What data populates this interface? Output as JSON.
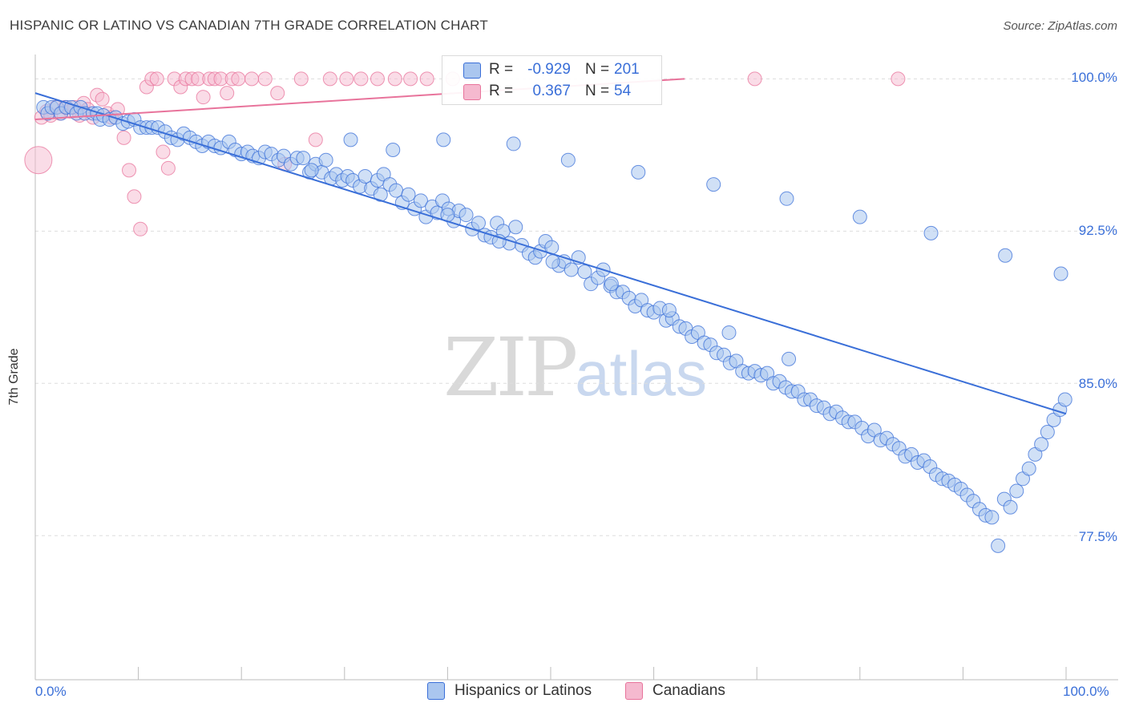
{
  "title": "HISPANIC OR LATINO VS CANADIAN 7TH GRADE CORRELATION CHART",
  "source": "Source: ZipAtlas.com",
  "watermark": {
    "zip": "ZIP",
    "atlas": "atlas"
  },
  "colors": {
    "blue": "#3a6fd8",
    "blue_fill": "#aac6ef",
    "pink": "#e8739b",
    "pink_fill": "#f5b9cf",
    "grid": "#dddddd"
  },
  "legend": {
    "rows": [
      {
        "r_label": "R =",
        "r_value": "-0.929",
        "n_label": "N =",
        "n_value": "201"
      },
      {
        "r_label": "R =",
        "r_value": "0.367",
        "n_label": "N =",
        "n_value": "54"
      }
    ]
  },
  "bottom_legend": [
    "Hispanics or Latinos",
    "Canadians"
  ],
  "chart_data": {
    "type": "scatter",
    "title": "HISPANIC OR LATINO VS CANADIAN 7TH GRADE CORRELATION CHART",
    "xlabel": "",
    "ylabel": "7th Grade",
    "x_tick_labels": [
      "0.0%",
      "100.0%"
    ],
    "y_tick_labels": [
      "100.0%",
      "92.5%",
      "85.0%",
      "77.5%"
    ],
    "y_tick_values": [
      100.0,
      92.5,
      85.0,
      77.5
    ],
    "xlim": [
      0,
      100
    ],
    "ylim": [
      70.4,
      101.2
    ],
    "grid": true,
    "legend_position": "top-center",
    "series": [
      {
        "name": "Hispanics or Latinos",
        "color": "#3a6fd8",
        "R": -0.929,
        "N": 201,
        "trend": {
          "x": [
            0,
            100
          ],
          "y": [
            99.3,
            83.5
          ]
        },
        "points": [
          [
            0.8,
            98.6
          ],
          [
            1.2,
            98.3
          ],
          [
            1.6,
            98.6
          ],
          [
            2.1,
            98.6
          ],
          [
            2.5,
            98.3
          ],
          [
            3.0,
            98.6
          ],
          [
            3.5,
            98.6
          ],
          [
            4.0,
            98.3
          ],
          [
            4.4,
            98.6
          ],
          [
            4.8,
            98.3
          ],
          [
            5.6,
            98.3
          ],
          [
            6.0,
            98.3
          ],
          [
            6.3,
            98.0
          ],
          [
            6.6,
            98.2
          ],
          [
            7.2,
            98.0
          ],
          [
            7.8,
            98.1
          ],
          [
            8.5,
            97.8
          ],
          [
            9.0,
            97.9
          ],
          [
            9.6,
            98.0
          ],
          [
            10.2,
            97.6
          ],
          [
            10.8,
            97.6
          ],
          [
            11.3,
            97.6
          ],
          [
            11.9,
            97.6
          ],
          [
            12.6,
            97.4
          ],
          [
            13.2,
            97.1
          ],
          [
            13.8,
            97.0
          ],
          [
            14.4,
            97.3
          ],
          [
            15.0,
            97.1
          ],
          [
            15.6,
            96.9
          ],
          [
            16.2,
            96.7
          ],
          [
            16.8,
            96.9
          ],
          [
            17.4,
            96.7
          ],
          [
            18.0,
            96.6
          ],
          [
            18.8,
            96.9
          ],
          [
            19.4,
            96.5
          ],
          [
            20.0,
            96.3
          ],
          [
            20.6,
            96.4
          ],
          [
            21.1,
            96.2
          ],
          [
            21.7,
            96.1
          ],
          [
            22.3,
            96.4
          ],
          [
            22.9,
            96.3
          ],
          [
            23.6,
            96.0
          ],
          [
            24.1,
            96.2
          ],
          [
            24.8,
            95.8
          ],
          [
            25.4,
            96.1
          ],
          [
            26.0,
            96.1
          ],
          [
            26.6,
            95.4
          ],
          [
            27.2,
            95.8
          ],
          [
            27.8,
            95.4
          ],
          [
            28.2,
            96.0
          ],
          [
            28.7,
            95.1
          ],
          [
            29.2,
            95.3
          ],
          [
            29.8,
            95.0
          ],
          [
            30.3,
            95.2
          ],
          [
            30.8,
            95.0
          ],
          [
            31.5,
            94.7
          ],
          [
            32.0,
            95.2
          ],
          [
            32.6,
            94.6
          ],
          [
            33.2,
            95.0
          ],
          [
            33.8,
            95.3
          ],
          [
            34.4,
            94.8
          ],
          [
            35.0,
            94.5
          ],
          [
            35.6,
            93.9
          ],
          [
            36.2,
            94.3
          ],
          [
            36.8,
            93.6
          ],
          [
            37.4,
            94.0
          ],
          [
            37.9,
            93.2
          ],
          [
            38.5,
            93.7
          ],
          [
            39.0,
            93.4
          ],
          [
            39.5,
            94.0
          ],
          [
            40.1,
            93.6
          ],
          [
            40.6,
            93.0
          ],
          [
            41.1,
            93.5
          ],
          [
            41.8,
            93.3
          ],
          [
            42.4,
            92.6
          ],
          [
            43.0,
            92.9
          ],
          [
            43.6,
            92.3
          ],
          [
            44.2,
            92.2
          ],
          [
            44.8,
            92.9
          ],
          [
            45.4,
            92.5
          ],
          [
            46.0,
            91.9
          ],
          [
            46.6,
            92.7
          ],
          [
            47.2,
            91.8
          ],
          [
            47.9,
            91.4
          ],
          [
            48.5,
            91.2
          ],
          [
            49.0,
            91.5
          ],
          [
            49.5,
            92.0
          ],
          [
            50.1,
            91.7
          ],
          [
            50.8,
            90.8
          ],
          [
            51.3,
            91.0
          ],
          [
            52.0,
            90.6
          ],
          [
            52.7,
            91.2
          ],
          [
            53.3,
            90.5
          ],
          [
            53.9,
            89.9
          ],
          [
            54.6,
            90.2
          ],
          [
            55.1,
            90.6
          ],
          [
            55.8,
            89.8
          ],
          [
            56.4,
            89.5
          ],
          [
            57.0,
            89.5
          ],
          [
            57.6,
            89.2
          ],
          [
            58.2,
            88.8
          ],
          [
            58.8,
            89.1
          ],
          [
            59.4,
            88.6
          ],
          [
            60.0,
            88.5
          ],
          [
            60.6,
            88.7
          ],
          [
            61.2,
            88.1
          ],
          [
            61.8,
            88.2
          ],
          [
            62.5,
            87.8
          ],
          [
            63.1,
            87.7
          ],
          [
            63.7,
            87.3
          ],
          [
            64.3,
            87.5
          ],
          [
            64.9,
            87.0
          ],
          [
            65.5,
            86.9
          ],
          [
            66.1,
            86.5
          ],
          [
            66.8,
            86.4
          ],
          [
            67.4,
            86.0
          ],
          [
            68.0,
            86.1
          ],
          [
            68.6,
            85.6
          ],
          [
            69.2,
            85.5
          ],
          [
            69.8,
            85.6
          ],
          [
            70.4,
            85.4
          ],
          [
            71.0,
            85.5
          ],
          [
            71.6,
            85.0
          ],
          [
            72.2,
            85.1
          ],
          [
            72.8,
            84.8
          ],
          [
            73.4,
            84.6
          ],
          [
            74.0,
            84.6
          ],
          [
            74.6,
            84.2
          ],
          [
            75.2,
            84.2
          ],
          [
            75.8,
            83.9
          ],
          [
            76.5,
            83.8
          ],
          [
            77.1,
            83.5
          ],
          [
            77.7,
            83.6
          ],
          [
            78.3,
            83.3
          ],
          [
            78.9,
            83.1
          ],
          [
            79.5,
            83.1
          ],
          [
            80.2,
            82.8
          ],
          [
            80.8,
            82.4
          ],
          [
            81.4,
            82.7
          ],
          [
            82.0,
            82.2
          ],
          [
            82.6,
            82.3
          ],
          [
            83.2,
            82.0
          ],
          [
            83.8,
            81.8
          ],
          [
            84.4,
            81.4
          ],
          [
            85.0,
            81.5
          ],
          [
            85.6,
            81.1
          ],
          [
            86.2,
            81.2
          ],
          [
            86.8,
            80.9
          ],
          [
            87.4,
            80.5
          ],
          [
            88.0,
            80.3
          ],
          [
            88.6,
            80.2
          ],
          [
            89.2,
            80.0
          ],
          [
            89.8,
            79.8
          ],
          [
            90.4,
            79.5
          ],
          [
            91.0,
            79.2
          ],
          [
            91.6,
            78.8
          ],
          [
            92.2,
            78.5
          ],
          [
            92.8,
            78.4
          ],
          [
            93.4,
            77.0
          ],
          [
            94.0,
            79.3
          ],
          [
            94.6,
            78.9
          ],
          [
            95.2,
            79.7
          ],
          [
            95.8,
            80.3
          ],
          [
            96.4,
            80.8
          ],
          [
            97.0,
            81.5
          ],
          [
            97.6,
            82.0
          ],
          [
            98.2,
            82.6
          ],
          [
            98.8,
            83.2
          ],
          [
            99.4,
            83.7
          ],
          [
            99.9,
            84.2
          ],
          [
            30.6,
            97.0
          ],
          [
            34.7,
            96.5
          ],
          [
            39.6,
            97.0
          ],
          [
            46.4,
            96.8
          ],
          [
            51.7,
            96.0
          ],
          [
            58.5,
            95.4
          ],
          [
            65.8,
            94.8
          ],
          [
            72.9,
            94.1
          ],
          [
            80.0,
            93.2
          ],
          [
            86.9,
            92.4
          ],
          [
            94.1,
            91.3
          ],
          [
            99.5,
            90.4
          ],
          [
            26.8,
            95.5
          ],
          [
            33.5,
            94.3
          ],
          [
            40.0,
            93.3
          ],
          [
            45.0,
            92.0
          ],
          [
            50.2,
            91.0
          ],
          [
            55.9,
            89.9
          ],
          [
            61.5,
            88.6
          ],
          [
            67.3,
            87.5
          ],
          [
            73.1,
            86.2
          ]
        ]
      },
      {
        "name": "Canadians",
        "color": "#e8739b",
        "R": 0.367,
        "N": 54,
        "trend": {
          "x": [
            0,
            63
          ],
          "y": [
            98.0,
            100.0
          ]
        },
        "points": [
          [
            0.6,
            98.1
          ],
          [
            1.1,
            98.4
          ],
          [
            1.5,
            98.2
          ],
          [
            2.0,
            98.6
          ],
          [
            2.4,
            98.3
          ],
          [
            2.9,
            98.6
          ],
          [
            3.4,
            98.4
          ],
          [
            3.8,
            98.6
          ],
          [
            4.3,
            98.2
          ],
          [
            4.7,
            98.8
          ],
          [
            5.1,
            98.5
          ],
          [
            5.6,
            98.1
          ],
          [
            6.0,
            99.2
          ],
          [
            6.5,
            99.0
          ],
          [
            7.0,
            98.3
          ],
          [
            7.4,
            98.1
          ],
          [
            8.0,
            98.5
          ],
          [
            8.6,
            97.1
          ],
          [
            9.1,
            95.5
          ],
          [
            9.6,
            94.2
          ],
          [
            10.2,
            92.6
          ],
          [
            10.8,
            99.6
          ],
          [
            11.3,
            100.0
          ],
          [
            11.8,
            100.0
          ],
          [
            12.4,
            96.4
          ],
          [
            12.9,
            95.6
          ],
          [
            13.5,
            100.0
          ],
          [
            14.1,
            99.6
          ],
          [
            14.6,
            100.0
          ],
          [
            15.2,
            100.0
          ],
          [
            15.8,
            100.0
          ],
          [
            16.3,
            99.1
          ],
          [
            16.9,
            100.0
          ],
          [
            17.4,
            100.0
          ],
          [
            18.0,
            100.0
          ],
          [
            18.6,
            99.3
          ],
          [
            19.1,
            100.0
          ],
          [
            19.7,
            100.0
          ],
          [
            21.0,
            100.0
          ],
          [
            22.3,
            100.0
          ],
          [
            23.5,
            99.3
          ],
          [
            24.2,
            95.8
          ],
          [
            25.8,
            100.0
          ],
          [
            27.2,
            97.0
          ],
          [
            28.6,
            100.0
          ],
          [
            30.2,
            100.0
          ],
          [
            31.6,
            100.0
          ],
          [
            33.2,
            100.0
          ],
          [
            34.9,
            100.0
          ],
          [
            36.4,
            100.0
          ],
          [
            38.0,
            100.0
          ],
          [
            40.5,
            100.0
          ],
          [
            69.8,
            100.0
          ],
          [
            83.7,
            100.0
          ]
        ]
      }
    ]
  }
}
